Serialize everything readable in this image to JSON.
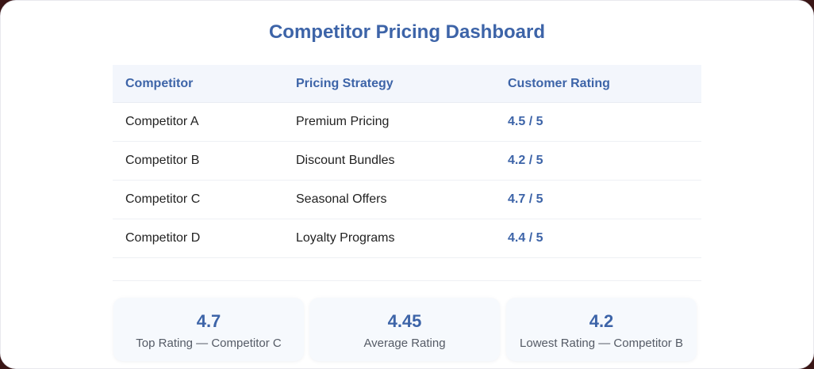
{
  "title": "Competitor Pricing Dashboard",
  "table": {
    "headers": [
      "Competitor",
      "Pricing Strategy",
      "Customer Rating"
    ],
    "rows": [
      [
        "Competitor A",
        "Premium Pricing",
        "4.5 / 5"
      ],
      [
        "Competitor B",
        "Discount Bundles",
        "4.2 / 5"
      ],
      [
        "Competitor C",
        "Seasonal Offers",
        "4.7 / 5"
      ],
      [
        "Competitor D",
        "Loyalty Programs",
        "4.4 / 5"
      ]
    ]
  },
  "stats": [
    {
      "value": "4.7",
      "label": "Top Rating — Competitor C"
    },
    {
      "value": "4.45",
      "label": "Average Rating"
    },
    {
      "value": "4.2",
      "label": "Lowest Rating — Competitor B"
    }
  ],
  "colors": {
    "accent": "#3d64a8",
    "header_bg": "#f3f6fc",
    "card_bg": "#f6f9fd"
  }
}
